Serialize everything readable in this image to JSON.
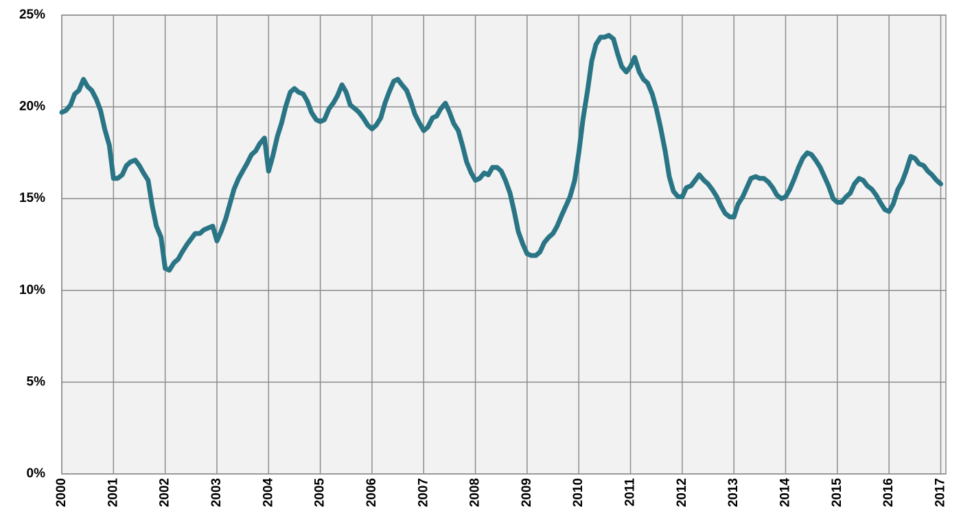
{
  "chart_data": {
    "type": "line",
    "x": [
      2000,
      2000.08,
      2000.17,
      2000.25,
      2000.33,
      2000.42,
      2000.5,
      2000.58,
      2000.67,
      2000.75,
      2000.83,
      2000.92,
      2001,
      2001.08,
      2001.17,
      2001.25,
      2001.33,
      2001.42,
      2001.5,
      2001.58,
      2001.67,
      2001.75,
      2001.83,
      2001.92,
      2002,
      2002.08,
      2002.17,
      2002.25,
      2002.33,
      2002.42,
      2002.5,
      2002.58,
      2002.67,
      2002.75,
      2002.83,
      2002.92,
      2003,
      2003.08,
      2003.17,
      2003.25,
      2003.33,
      2003.42,
      2003.5,
      2003.58,
      2003.67,
      2003.75,
      2003.83,
      2003.92,
      2004,
      2004.08,
      2004.17,
      2004.25,
      2004.33,
      2004.42,
      2004.5,
      2004.58,
      2004.67,
      2004.75,
      2004.83,
      2004.92,
      2005,
      2005.08,
      2005.17,
      2005.25,
      2005.33,
      2005.42,
      2005.5,
      2005.58,
      2005.67,
      2005.75,
      2005.83,
      2005.92,
      2006,
      2006.08,
      2006.17,
      2006.25,
      2006.33,
      2006.42,
      2006.5,
      2006.58,
      2006.67,
      2006.75,
      2006.83,
      2006.92,
      2007,
      2007.08,
      2007.17,
      2007.25,
      2007.33,
      2007.42,
      2007.5,
      2007.58,
      2007.67,
      2007.75,
      2007.83,
      2007.92,
      2008,
      2008.08,
      2008.17,
      2008.25,
      2008.33,
      2008.42,
      2008.5,
      2008.58,
      2008.67,
      2008.75,
      2008.83,
      2008.92,
      2009,
      2009.08,
      2009.17,
      2009.25,
      2009.33,
      2009.42,
      2009.5,
      2009.58,
      2009.67,
      2009.75,
      2009.83,
      2009.92,
      2010,
      2010.08,
      2010.17,
      2010.25,
      2010.33,
      2010.42,
      2010.5,
      2010.58,
      2010.67,
      2010.75,
      2010.83,
      2010.92,
      2011,
      2011.08,
      2011.17,
      2011.25,
      2011.33,
      2011.42,
      2011.5,
      2011.58,
      2011.67,
      2011.75,
      2011.83,
      2011.92,
      2012,
      2012.08,
      2012.17,
      2012.25,
      2012.33,
      2012.42,
      2012.5,
      2012.58,
      2012.67,
      2012.75,
      2012.83,
      2012.92,
      2013,
      2013.08,
      2013.17,
      2013.25,
      2013.33,
      2013.42,
      2013.5,
      2013.58,
      2013.67,
      2013.75,
      2013.83,
      2013.92,
      2014,
      2014.08,
      2014.17,
      2014.25,
      2014.33,
      2014.42,
      2014.5,
      2014.58,
      2014.67,
      2014.75,
      2014.83,
      2014.92,
      2015,
      2015.08,
      2015.17,
      2015.25,
      2015.33,
      2015.42,
      2015.5,
      2015.58,
      2015.67,
      2015.75,
      2015.83,
      2015.92,
      2016,
      2016.08,
      2016.17,
      2016.25,
      2016.33,
      2016.42,
      2016.5,
      2016.58,
      2016.67,
      2016.75,
      2016.83,
      2016.92,
      2017
    ],
    "values": [
      19.7,
      19.8,
      20.1,
      20.7,
      20.9,
      21.5,
      21.1,
      20.9,
      20.4,
      19.8,
      18.8,
      17.9,
      16.1,
      16.1,
      16.3,
      16.8,
      17.0,
      17.1,
      16.8,
      16.4,
      16.0,
      14.6,
      13.5,
      12.9,
      11.2,
      11.1,
      11.5,
      11.7,
      12.1,
      12.5,
      12.8,
      13.1,
      13.1,
      13.3,
      13.4,
      13.5,
      12.7,
      13.2,
      13.9,
      14.7,
      15.5,
      16.1,
      16.5,
      16.9,
      17.4,
      17.6,
      18.0,
      18.3,
      16.5,
      17.3,
      18.4,
      19.1,
      20.0,
      20.8,
      21.0,
      20.8,
      20.7,
      20.3,
      19.7,
      19.3,
      19.2,
      19.3,
      19.9,
      20.2,
      20.6,
      21.2,
      20.8,
      20.1,
      19.9,
      19.7,
      19.4,
      19.0,
      18.8,
      19.0,
      19.4,
      20.2,
      20.8,
      21.4,
      21.5,
      21.2,
      20.9,
      20.3,
      19.6,
      19.1,
      18.7,
      18.9,
      19.4,
      19.5,
      19.9,
      20.2,
      19.7,
      19.1,
      18.7,
      17.9,
      17.0,
      16.4,
      16.0,
      16.1,
      16.4,
      16.3,
      16.7,
      16.7,
      16.5,
      16.0,
      15.3,
      14.3,
      13.2,
      12.5,
      12.0,
      11.9,
      11.9,
      12.1,
      12.6,
      12.9,
      13.1,
      13.5,
      14.1,
      14.6,
      15.1,
      16.0,
      17.5,
      19.3,
      20.9,
      22.5,
      23.4,
      23.8,
      23.8,
      23.9,
      23.7,
      22.9,
      22.2,
      21.9,
      22.2,
      22.7,
      21.9,
      21.5,
      21.3,
      20.7,
      19.9,
      18.9,
      17.6,
      16.2,
      15.4,
      15.1,
      15.1,
      15.6,
      15.7,
      16.0,
      16.3,
      16.0,
      15.8,
      15.5,
      15.1,
      14.6,
      14.2,
      14.0,
      14.0,
      14.7,
      15.1,
      15.6,
      16.1,
      16.2,
      16.1,
      16.1,
      15.9,
      15.6,
      15.2,
      15.0,
      15.1,
      15.5,
      16.1,
      16.7,
      17.2,
      17.5,
      17.4,
      17.1,
      16.7,
      16.2,
      15.7,
      15.0,
      14.8,
      14.8,
      15.1,
      15.3,
      15.8,
      16.1,
      16.0,
      15.7,
      15.5,
      15.2,
      14.8,
      14.4,
      14.3,
      14.7,
      15.5,
      15.9,
      16.5,
      17.3,
      17.2,
      16.9,
      16.8,
      16.5,
      16.3,
      16.0,
      15.8
    ],
    "color": "#2a7585",
    "xlim": [
      2000,
      2017.1
    ],
    "xticks": [
      2000,
      2001,
      2002,
      2003,
      2004,
      2005,
      2006,
      2007,
      2008,
      2009,
      2010,
      2011,
      2012,
      2013,
      2014,
      2015,
      2016,
      2017
    ],
    "ylim": [
      0,
      25
    ],
    "yticks": [
      {
        "value": 0,
        "label": "0%"
      },
      {
        "value": 5,
        "label": "5%"
      },
      {
        "value": 10,
        "label": "10%"
      },
      {
        "value": 15,
        "label": "15%"
      },
      {
        "value": 20,
        "label": "20%"
      },
      {
        "value": 25,
        "label": "25%"
      }
    ],
    "grid": true
  }
}
